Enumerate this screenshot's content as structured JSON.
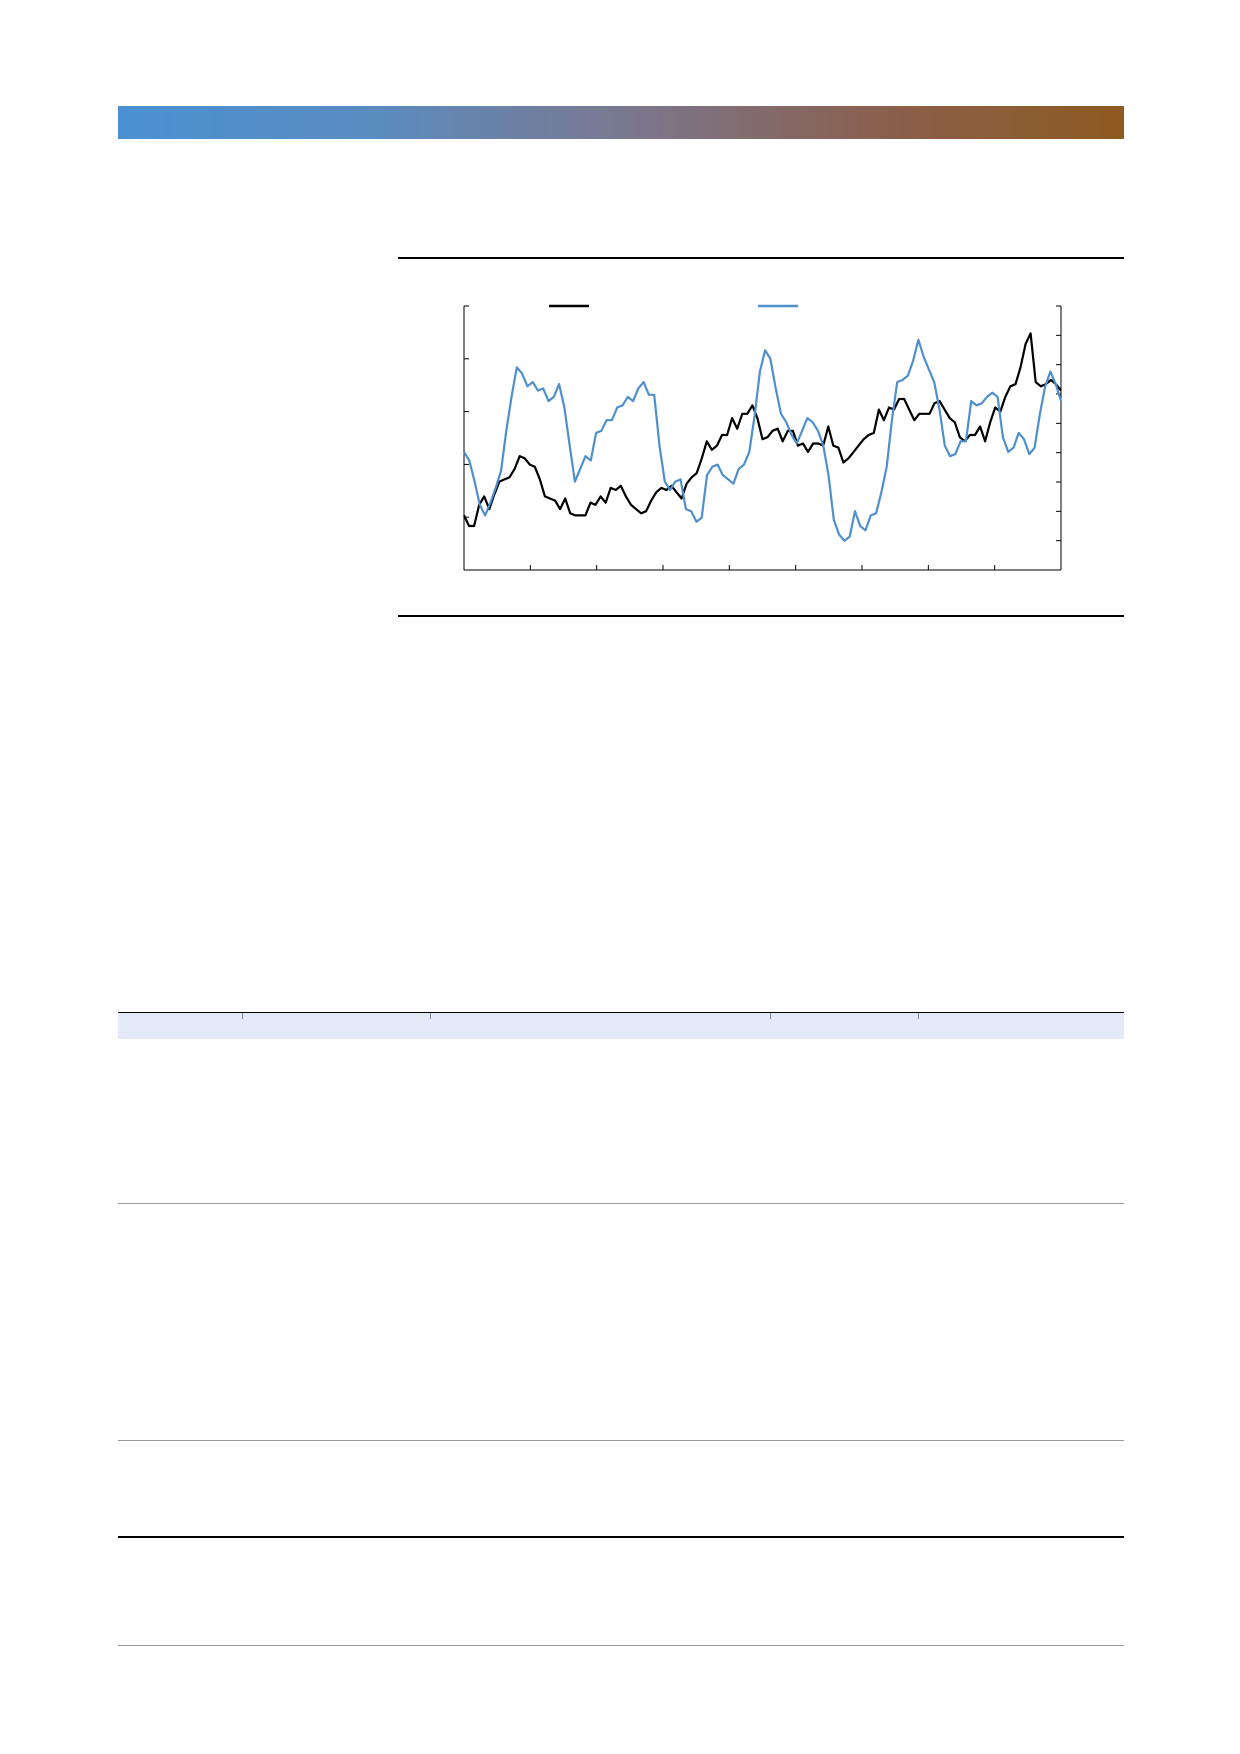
{
  "page": {
    "banner_colors": [
      "#4a90d2",
      "#7a7890",
      "#8e5a20"
    ]
  },
  "chart_data": {
    "type": "line",
    "title": "",
    "xlabel": "",
    "ylabel": "",
    "legend_position": "top",
    "grid": false,
    "x_ticks": 9,
    "y_ticks_left": 6,
    "y_ticks_right": 10,
    "series": [
      {
        "color": "#000000",
        "values": [
          22,
          17,
          17,
          27,
          31,
          25,
          32,
          38,
          39,
          40,
          44,
          50,
          49,
          46,
          45,
          39,
          31,
          30,
          29,
          25,
          30,
          23,
          22,
          22,
          22,
          28,
          27,
          31,
          28,
          35,
          34,
          36,
          31,
          27,
          25,
          23,
          24,
          29,
          33,
          35,
          34,
          36,
          33,
          30,
          37,
          40,
          42,
          49,
          57,
          53,
          55,
          60,
          60,
          68,
          63,
          70,
          70,
          74,
          68,
          58,
          59,
          62,
          63,
          57,
          62,
          62,
          55,
          56,
          52,
          56,
          56,
          55,
          64,
          55,
          54,
          47,
          49,
          52,
          55,
          58,
          60,
          61,
          72,
          67,
          73,
          72,
          77,
          77,
          72,
          67,
          70,
          70,
          70,
          75,
          76,
          72,
          68,
          66,
          59,
          57,
          60,
          60,
          64,
          57,
          66,
          73,
          71,
          78,
          83,
          84,
          92,
          103,
          108,
          85,
          83,
          84,
          86,
          84,
          81
        ]
      },
      {
        "color": "#4f8fcc",
        "values": [
          52,
          48,
          38,
          27,
          22,
          28,
          35,
          43,
          62,
          78,
          92,
          89,
          83,
          85,
          81,
          82,
          76,
          78,
          84,
          73,
          55,
          38,
          44,
          50,
          48,
          61,
          62,
          67,
          67,
          73,
          74,
          78,
          76,
          82,
          85,
          79,
          79,
          55,
          38,
          34,
          38,
          39,
          25,
          24,
          19,
          21,
          41,
          45,
          46,
          41,
          39,
          37,
          44,
          46,
          52,
          69,
          90,
          100,
          96,
          82,
          70,
          66,
          60,
          56,
          62,
          68,
          66,
          62,
          55,
          41,
          20,
          13,
          10,
          12,
          24,
          17,
          15,
          22,
          23,
          33,
          45,
          67,
          85,
          86,
          88,
          95,
          105,
          97,
          91,
          85,
          72,
          55,
          50,
          51,
          57,
          57,
          76,
          74,
          75,
          78,
          80,
          78,
          59,
          52,
          54,
          61,
          58,
          51,
          54,
          70,
          83,
          90,
          84,
          76
        ]
      }
    ]
  }
}
